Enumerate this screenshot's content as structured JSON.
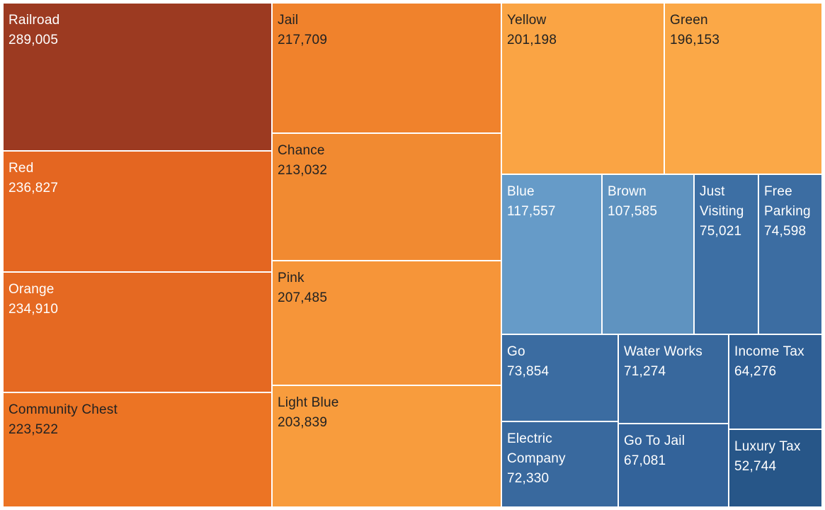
{
  "chart_data": {
    "type": "treemap",
    "title": "",
    "items": [
      {
        "label": "Railroad",
        "value_text": "289,005",
        "value": 289005,
        "color": "#9c3a21",
        "text_color": "#ffffff"
      },
      {
        "label": "Red",
        "value_text": "236,827",
        "value": 236827,
        "color": "#e46621",
        "text_color": "#ffffff"
      },
      {
        "label": "Orange",
        "value_text": "234,910",
        "value": 234910,
        "color": "#e56922",
        "text_color": "#ffffff"
      },
      {
        "label": "Community Chest",
        "value_text": "223,522",
        "value": 223522,
        "color": "#ec7424",
        "text_color": "#222222"
      },
      {
        "label": "Jail",
        "value_text": "217,709",
        "value": 217709,
        "color": "#f0822c",
        "text_color": "#222222"
      },
      {
        "label": "Chance",
        "value_text": "213,032",
        "value": 213032,
        "color": "#f18a31",
        "text_color": "#222222"
      },
      {
        "label": "Pink",
        "value_text": "207,485",
        "value": 207485,
        "color": "#f69539",
        "text_color": "#222222"
      },
      {
        "label": "Light Blue",
        "value_text": "203,839",
        "value": 203839,
        "color": "#f89c3d",
        "text_color": "#222222"
      },
      {
        "label": "Yellow",
        "value_text": "201,198",
        "value": 201198,
        "color": "#faa444",
        "text_color": "#222222"
      },
      {
        "label": "Green",
        "value_text": "196,153",
        "value": 196153,
        "color": "#fba847",
        "text_color": "#222222"
      },
      {
        "label": "Blue",
        "value_text": "117,557",
        "value": 117557,
        "color": "#669bc8",
        "text_color": "#ffffff"
      },
      {
        "label": "Brown",
        "value_text": "107,585",
        "value": 107585,
        "color": "#5f93c0",
        "text_color": "#ffffff"
      },
      {
        "label": "Just Visiting",
        "value_text": "75,021",
        "value": 75021,
        "color": "#3d6fa4",
        "text_color": "#ffffff"
      },
      {
        "label": "Free Parking",
        "value_text": "74,598",
        "value": 74598,
        "color": "#3c6da2",
        "text_color": "#ffffff"
      },
      {
        "label": "Go",
        "value_text": "73,854",
        "value": 73854,
        "color": "#3b6ca1",
        "text_color": "#ffffff"
      },
      {
        "label": "Electric Company",
        "value_text": "72,330",
        "value": 72330,
        "color": "#39699e",
        "text_color": "#ffffff"
      },
      {
        "label": "Water Works",
        "value_text": "71,274",
        "value": 71274,
        "color": "#38689d",
        "text_color": "#ffffff"
      },
      {
        "label": "Go To Jail",
        "value_text": "67,081",
        "value": 67081,
        "color": "#33639a",
        "text_color": "#ffffff"
      },
      {
        "label": "Income Tax",
        "value_text": "64,276",
        "value": 64276,
        "color": "#2f5f95",
        "text_color": "#ffffff"
      },
      {
        "label": "Luxury Tax",
        "value_text": "52,744",
        "value": 52744,
        "color": "#275688",
        "text_color": "#ffffff"
      }
    ]
  }
}
